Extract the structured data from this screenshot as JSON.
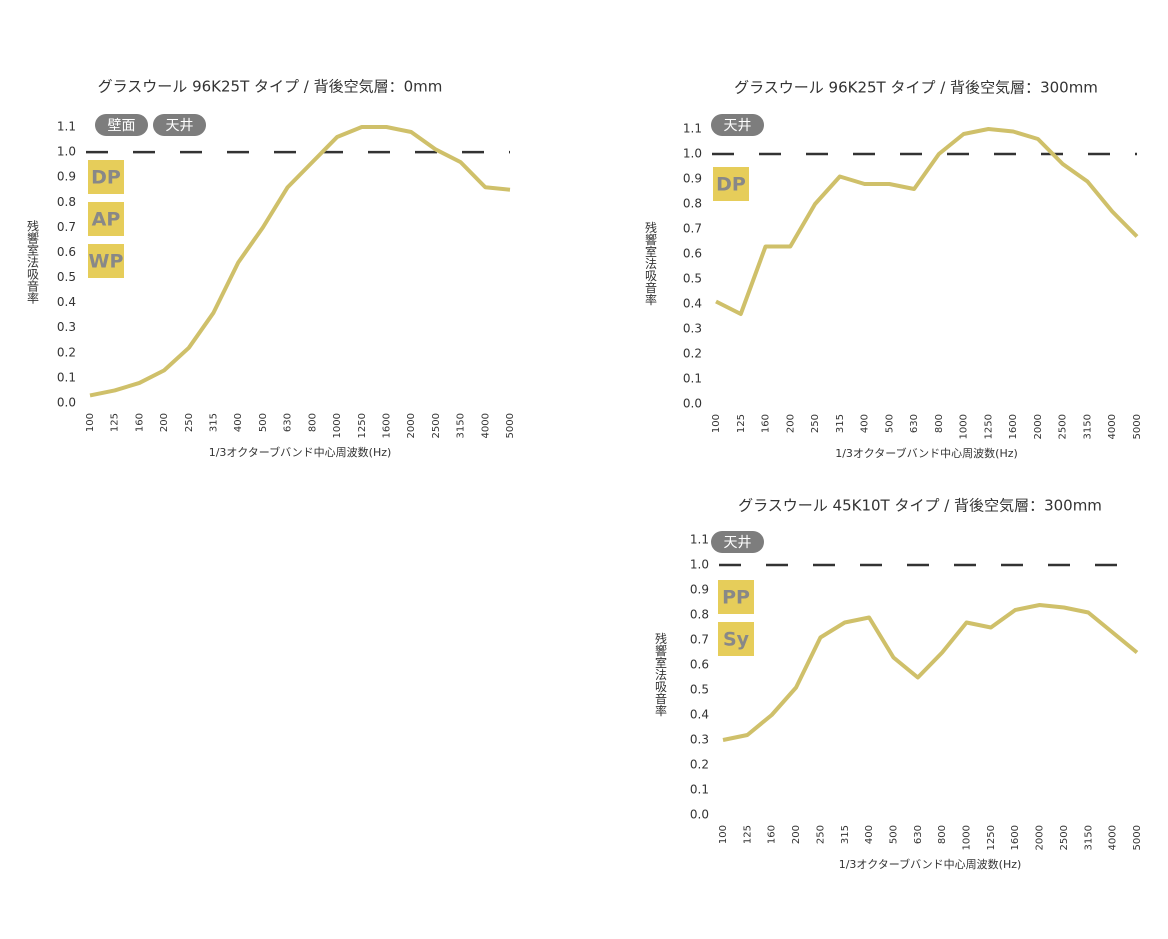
{
  "chart_data": [
    {
      "type": "line",
      "title": "グラスウール 96K25T タイプ /  背後空気層：0mm",
      "x_label": "1/3オクターブバンド中心周波数(Hz)",
      "y_label": "残響室法吸音率",
      "tags": [
        "壁面",
        "天井"
      ],
      "badges": [
        "DP",
        "AP",
        "WP"
      ],
      "categories": [
        "100",
        "125",
        "160",
        "200",
        "250",
        "315",
        "400",
        "500",
        "630",
        "800",
        "1000",
        "1250",
        "1600",
        "2000",
        "2500",
        "3150",
        "4000",
        "5000"
      ],
      "values": [
        0.03,
        0.05,
        0.08,
        0.13,
        0.22,
        0.36,
        0.56,
        0.7,
        0.86,
        0.96,
        1.06,
        1.1,
        1.1,
        1.08,
        1.01,
        0.96,
        0.86,
        0.85
      ],
      "color": "#cfc06a",
      "reference_line": 1,
      "ylim": [
        0,
        1.1
      ],
      "yticks": [
        {
          "value": 0,
          "label": "0.0"
        },
        0.1,
        0.2,
        0.3,
        0.4,
        0.5,
        0.6,
        0.7,
        0.8,
        0.9,
        {
          "value": 1,
          "label": "1.0"
        },
        1.1
      ]
    },
    {
      "type": "line",
      "title": "グラスウール 96K25T タイプ /  背後空気層：300mm",
      "x_label": "1/3オクターブバンド中心周波数(Hz)",
      "y_label": "残響室法吸音率",
      "tags": [
        "天井"
      ],
      "badges": [
        "DP"
      ],
      "categories": [
        "100",
        "125",
        "160",
        "200",
        "250",
        "315",
        "400",
        "500",
        "630",
        "800",
        "1000",
        "1250",
        "1600",
        "2000",
        "2500",
        "3150",
        "4000",
        "5000"
      ],
      "values": [
        0.41,
        0.36,
        0.63,
        0.63,
        0.8,
        0.91,
        0.88,
        0.88,
        0.86,
        1.0,
        1.08,
        1.1,
        1.09,
        1.06,
        0.96,
        0.89,
        0.77,
        0.67
      ],
      "color": "#cfc06a",
      "reference_line": 1,
      "ylim": [
        0,
        1.1
      ],
      "yticks": [
        {
          "value": 0,
          "label": "0.0"
        },
        0.1,
        0.2,
        0.3,
        0.4,
        0.5,
        0.6,
        0.7,
        0.8,
        0.9,
        {
          "value": 1,
          "label": "1.0"
        },
        1.1
      ]
    },
    {
      "type": "line",
      "title": "グラスウール 45K10T タイプ /  背後空気層：300mm",
      "x_label": "1/3オクターブバンド中心周波数(Hz)",
      "y_label": "残響室法吸音率",
      "tags": [
        "天井"
      ],
      "badges": [
        "PP",
        "Sy"
      ],
      "categories": [
        "100",
        "125",
        "160",
        "200",
        "250",
        "315",
        "400",
        "500",
        "630",
        "800",
        "1000",
        "1250",
        "1600",
        "2000",
        "2500",
        "3150",
        "4000",
        "5000"
      ],
      "values": [
        0.3,
        0.32,
        0.4,
        0.51,
        0.71,
        0.77,
        0.79,
        0.63,
        0.55,
        0.65,
        0.77,
        0.75,
        0.82,
        0.84,
        0.83,
        0.81,
        0.73,
        0.65
      ],
      "color": "#cfc06a",
      "reference_line": 1,
      "ylim": [
        0,
        1.1
      ],
      "yticks": [
        {
          "value": 0,
          "label": "0.0"
        },
        0.1,
        0.2,
        0.3,
        0.4,
        0.5,
        0.6,
        0.7,
        0.8,
        0.9,
        {
          "value": 1,
          "label": "1.0"
        },
        1.1
      ]
    }
  ]
}
